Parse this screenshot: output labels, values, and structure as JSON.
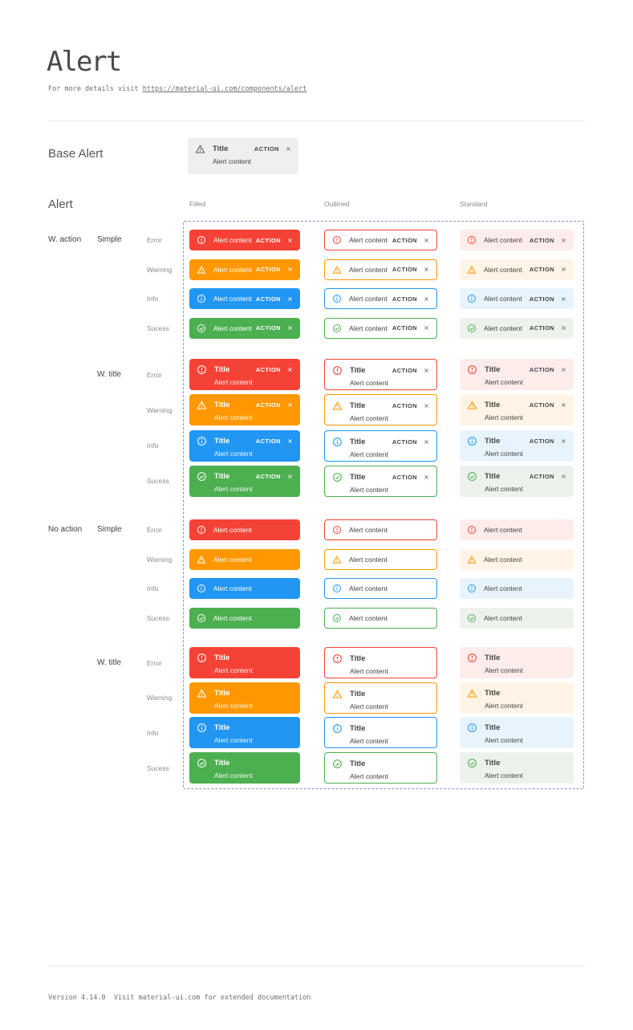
{
  "page": {
    "title": "Alert",
    "subtitle": {
      "prefix": "For more details visit ",
      "link": "https://material-ui.com/components/alert"
    },
    "footer": "Version 4.14.0  Visit material-ui.com for extended documentation"
  },
  "base_alert_section": {
    "label": "Base Alert",
    "alert": {
      "icon": "warning-icon",
      "title": "Title",
      "content": "Alert content",
      "action": "ACTION",
      "close": "close-icon"
    }
  },
  "alert_section": {
    "label": "Alert",
    "column_headers": [
      "Filled",
      "Outlined",
      "Standard"
    ],
    "alert_template": {
      "title": "Title",
      "content": "Alert content",
      "action": "ACTION"
    },
    "severities": [
      {
        "name": "error",
        "label": "Error",
        "icon": "error-icon",
        "color": "#f44336",
        "tint": "#fdecea"
      },
      {
        "name": "warning",
        "label": "Warning",
        "icon": "warning-icon",
        "color": "#ff9800",
        "tint": "#fff4e5"
      },
      {
        "name": "info",
        "label": "Info",
        "icon": "info-icon",
        "color": "#2196f3",
        "tint": "#e8f4fd"
      },
      {
        "name": "success",
        "label": "Sucess",
        "icon": "success-icon",
        "color": "#4caf50",
        "tint": "#edf2ec"
      }
    ],
    "row_groups": [
      {
        "label": "W. action",
        "with_action": true,
        "subgroups": [
          {
            "label": "Simple",
            "with_title": false,
            "rows": [
              "Error",
              "Warning",
              "Info",
              "Sucess"
            ]
          },
          {
            "label": "W. title",
            "with_title": true,
            "rows": [
              "Error",
              "Warning",
              "Info",
              "Sucess"
            ]
          }
        ]
      },
      {
        "label": "No action",
        "with_action": false,
        "subgroups": [
          {
            "label": "Simple",
            "with_title": false,
            "rows": [
              "Error",
              "Warning",
              "Info",
              "Sucess"
            ]
          },
          {
            "label": "W. title",
            "with_title": true,
            "rows": [
              "Error",
              "Warning",
              "Info",
              "Sucess"
            ]
          }
        ]
      }
    ]
  },
  "colors": {
    "dashed_border": "#8790c8",
    "divider": "#e8e8e8",
    "base_alert_bg": "#f0efee",
    "text_dark": "#434343",
    "text_gray": "#8a8a8a"
  }
}
